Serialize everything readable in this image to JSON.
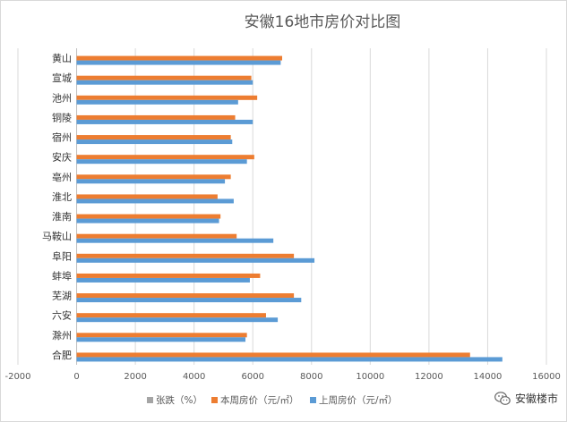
{
  "chart_data": {
    "type": "bar",
    "orientation": "horizontal",
    "title": "安徽16地市房价对比图",
    "categories": [
      "黄山",
      "宣城",
      "池州",
      "铜陵",
      "宿州",
      "安庆",
      "亳州",
      "淮北",
      "淮南",
      "马鞍山",
      "阜阳",
      "蚌埠",
      "芜湖",
      "六安",
      "滁州",
      "合肥"
    ],
    "series": [
      {
        "name": "张跌（%）",
        "color": "#a5a5a5",
        "values": [
          0,
          0,
          0,
          0,
          0,
          0,
          0,
          0,
          0,
          0,
          0,
          0,
          0,
          0,
          0,
          0
        ]
      },
      {
        "name": "本周房价（元/㎡）",
        "color": "#ed7d31",
        "values": [
          7000,
          5950,
          6150,
          5400,
          5250,
          6050,
          5250,
          4800,
          4900,
          5450,
          7400,
          6250,
          7400,
          6450,
          5800,
          13400
        ]
      },
      {
        "name": "上周房价（元/㎡）",
        "color": "#5b9bd5",
        "values": [
          6950,
          6000,
          5500,
          6000,
          5300,
          5800,
          5050,
          5350,
          4850,
          6700,
          8100,
          5900,
          7650,
          6850,
          5750,
          14500
        ]
      }
    ],
    "xlim": [
      -2000,
      16000
    ],
    "xticks": [
      -2000,
      0,
      2000,
      4000,
      6000,
      8000,
      10000,
      12000,
      14000,
      16000
    ],
    "grid": "vertical",
    "legend": "bottom"
  },
  "watermark": {
    "icon": "wechat-icon",
    "text": "安徽楼市"
  }
}
